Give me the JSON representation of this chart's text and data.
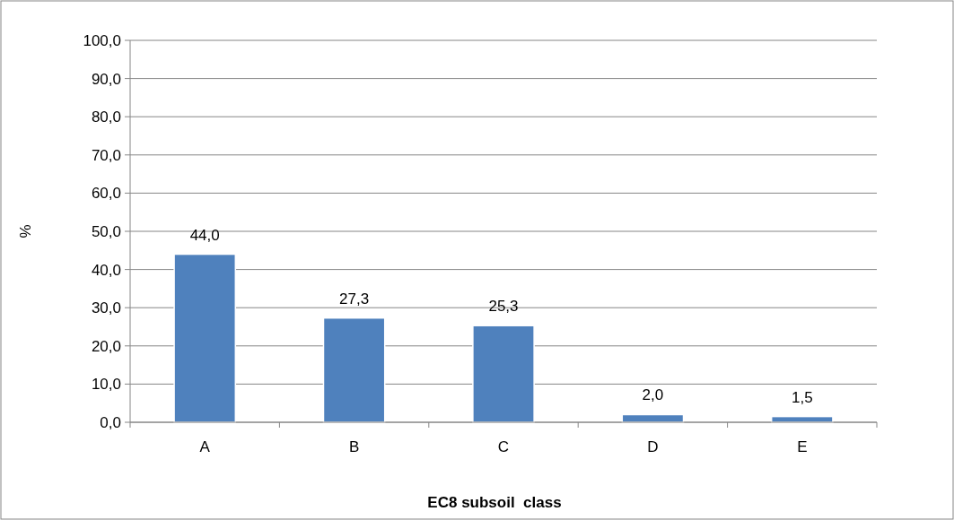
{
  "chart_data": {
    "type": "bar",
    "xlabel": "EC8 subsoil  class",
    "ylabel": "%",
    "categories": [
      "A",
      "B",
      "C",
      "D",
      "E"
    ],
    "values": [
      44.0,
      27.3,
      25.3,
      2.0,
      1.5
    ],
    "value_labels": [
      "44,0",
      "27,3",
      "25,3",
      "2,0",
      "1,5"
    ],
    "color": "#4f81bd",
    "ylim": [
      0,
      100
    ],
    "yticks": [
      {
        "value": 0,
        "label": "0,0"
      },
      {
        "value": 10,
        "label": "10,0"
      },
      {
        "value": 20,
        "label": "20,0"
      },
      {
        "value": 30,
        "label": "30,0"
      },
      {
        "value": 40,
        "label": "40,0"
      },
      {
        "value": 50,
        "label": "50,0"
      },
      {
        "value": 60,
        "label": "60,0"
      },
      {
        "value": 70,
        "label": "70,0"
      },
      {
        "value": 80,
        "label": "80,0"
      },
      {
        "value": 90,
        "label": "90,0"
      },
      {
        "value": 100,
        "label": "100,0"
      }
    ],
    "grid": "y"
  }
}
